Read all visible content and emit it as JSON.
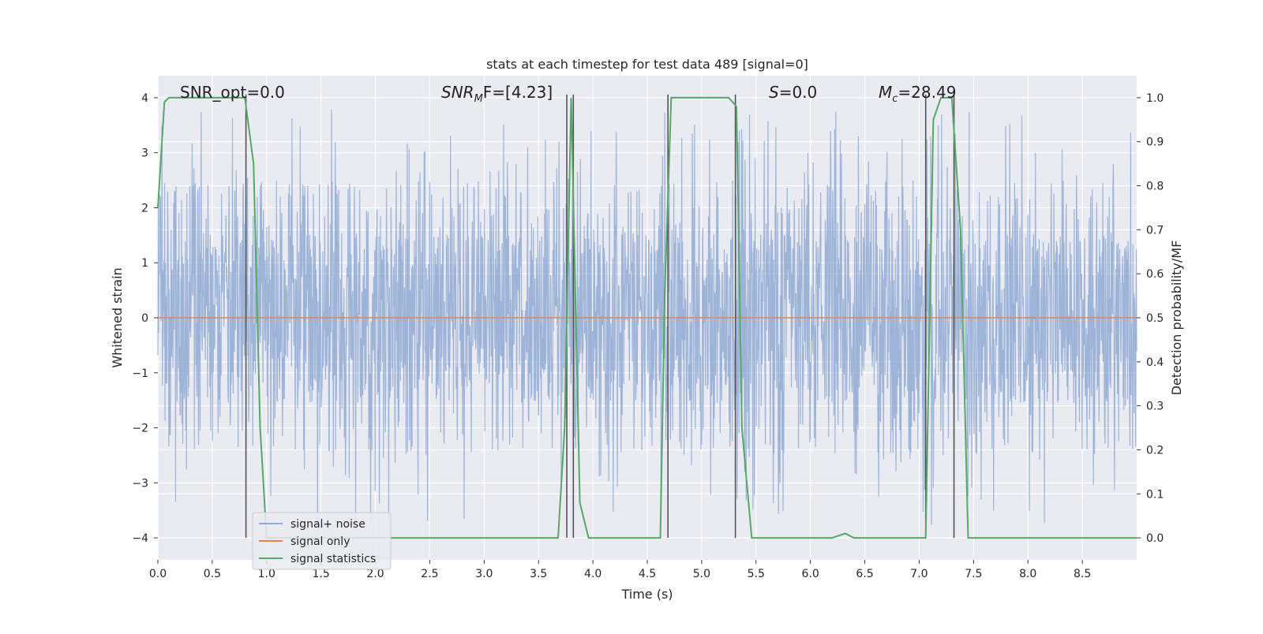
{
  "chart_data": {
    "type": "line",
    "title": "stats at each timestep for test data 489 [signal=0]",
    "xlabel": "Time (s)",
    "ylabel_left": "Whitened strain",
    "ylabel_right": "Detection probability/MF",
    "xlim": [
      0.0,
      9.0
    ],
    "ylim_left": [
      -4.4,
      4.4
    ],
    "ylim_right": [
      -0.05,
      1.05
    ],
    "xticks": [
      "0.0",
      "0.5",
      "1.0",
      "1.5",
      "2.0",
      "2.5",
      "3.0",
      "3.5",
      "4.0",
      "4.5",
      "5.0",
      "5.5",
      "6.0",
      "6.5",
      "7.0",
      "7.5",
      "8.0",
      "8.5"
    ],
    "yticks_left": [
      "−4",
      "−3",
      "−2",
      "−1",
      "0",
      "1",
      "2",
      "3",
      "4"
    ],
    "yticks_right": [
      "0.0",
      "0.1",
      "0.2",
      "0.3",
      "0.4",
      "0.5",
      "0.6",
      "0.7",
      "0.8",
      "0.9",
      "1.0"
    ],
    "grid": true,
    "legend_position": "lower-left",
    "annotations": {
      "snr_opt": "SNR_opt=0.0",
      "snr_mf_main": "SNR",
      "snr_mf_sub": "M",
      "snr_mf_rest": "F=[4.23]",
      "s_main": "S",
      "s_rest": "=0.0",
      "mc_main": "M",
      "mc_sub": "c",
      "mc_rest": "=28.49"
    },
    "series": [
      {
        "name": "signal+ noise",
        "color": "#8faad3",
        "style": "dense noise, approx ±1.5 body with peaks to ±3.8",
        "noise_seed": 489,
        "x_range": [
          0.0,
          9.0
        ],
        "samples": 2600
      },
      {
        "name": "signal only",
        "color": "#dd8452",
        "x": [
          0.0,
          9.0
        ],
        "y": [
          0.0,
          0.0
        ]
      },
      {
        "name": "signal statistics",
        "color": "#55a868",
        "axis": "right",
        "x": [
          0.0,
          0.06,
          0.1,
          0.8,
          0.88,
          0.94,
          1.0,
          3.68,
          3.74,
          3.8,
          3.88,
          3.96,
          4.62,
          4.66,
          4.72,
          5.25,
          5.32,
          5.37,
          5.46,
          6.2,
          6.32,
          6.4,
          7.06,
          7.13,
          7.2,
          7.3,
          7.38,
          7.45,
          7.52,
          9.0
        ],
        "y": [
          0.75,
          0.99,
          1.0,
          1.0,
          0.85,
          0.25,
          0.0,
          0.0,
          0.25,
          1.0,
          0.08,
          0.0,
          0.0,
          0.55,
          1.0,
          1.0,
          0.98,
          0.25,
          0.0,
          0.0,
          0.01,
          0.0,
          0.0,
          0.95,
          1.0,
          1.0,
          0.7,
          0.0,
          0.0,
          0.0
        ]
      }
    ],
    "vertical_markers_x": [
      0.81,
      3.76,
      3.82,
      4.69,
      5.31,
      7.06,
      7.32
    ],
    "vertical_marker_color": "#555555",
    "legend": [
      "signal+ noise",
      "signal only",
      "signal statistics"
    ]
  }
}
